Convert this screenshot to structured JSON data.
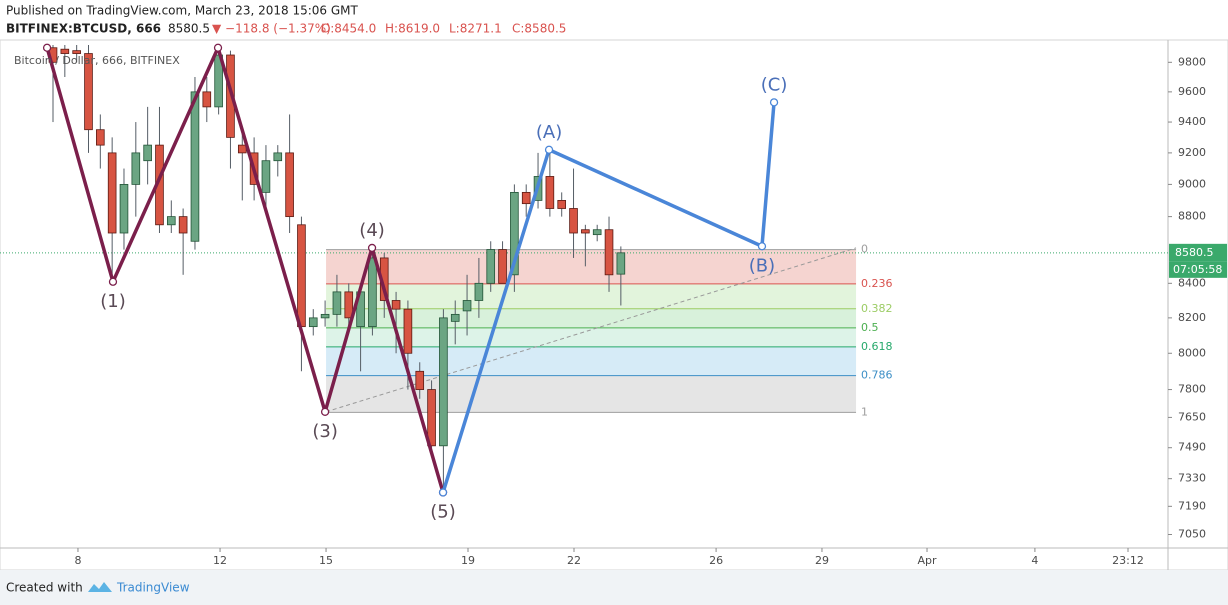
{
  "header": {
    "published": "Published on TradingView.com, March 23, 2018 15:06 GMT",
    "symbol": "BITFINEX:BTCUSD, 666",
    "last": "8580.5",
    "change": "▼ −118.8 (−1.37%)",
    "open": "O:8454.0",
    "high": "H:8619.0",
    "low": "L:8271.1",
    "close": "C:8580.5"
  },
  "footer": {
    "created": "Created with",
    "brand": "TradingView"
  },
  "chart_data": {
    "type": "candlestick",
    "legend": "Bitcoin / Dollar, 666, BITFINEX",
    "log": true,
    "up_color": "#6ba583",
    "down_color": "#d75442",
    "x": [
      0,
      1,
      2,
      3,
      4,
      5,
      6,
      7,
      8,
      9,
      10,
      11,
      12,
      13,
      14,
      15,
      16,
      17,
      18,
      19,
      20,
      21,
      22,
      23,
      24,
      25,
      26,
      27,
      28,
      29,
      30,
      31,
      32,
      33,
      34,
      35,
      36,
      37,
      38,
      39,
      40,
      41,
      42,
      43,
      44,
      45,
      46,
      47,
      48
    ],
    "open": [
      9900,
      9890,
      9880,
      9860,
      9350,
      9200,
      8700,
      9000,
      9150,
      9250,
      8750,
      8800,
      8650,
      9600,
      9500,
      9850,
      9250,
      9200,
      8950,
      9150,
      9200,
      8750,
      8150,
      8200,
      8220,
      8350,
      8150,
      8150,
      8550,
      8300,
      8250,
      7900,
      7800,
      7500,
      8180,
      8240,
      8300,
      8400,
      8600,
      8450,
      8950,
      8900,
      9050,
      8900,
      8850,
      8720,
      8690,
      8720,
      8454
    ],
    "high": [
      9919,
      9919,
      9919,
      9919,
      9450,
      9300,
      9100,
      9400,
      9500,
      9500,
      8900,
      8850,
      9700,
      9700,
      9919,
      9880,
      9350,
      9300,
      9250,
      9250,
      9450,
      8800,
      8250,
      8300,
      8450,
      8400,
      8400,
      8600,
      8580,
      8350,
      8300,
      7950,
      7850,
      8250,
      8300,
      8450,
      8550,
      8650,
      8650,
      9000,
      9000,
      9200,
      9220,
      8950,
      9100,
      8750,
      8750,
      8800,
      8619
    ],
    "low": [
      9400,
      9700,
      9800,
      9200,
      9100,
      8410,
      8600,
      8800,
      9000,
      8700,
      8700,
      8450,
      8600,
      9400,
      9450,
      9100,
      8900,
      8900,
      8850,
      9050,
      8700,
      7900,
      8100,
      8150,
      8150,
      8150,
      7900,
      8100,
      8200,
      8000,
      7800,
      7750,
      7480,
      7250,
      8050,
      8100,
      8200,
      8350,
      8400,
      8350,
      8800,
      8850,
      8800,
      8800,
      8550,
      8500,
      8650,
      8350,
      8271.1
    ],
    "close": [
      9800,
      9860,
      9860,
      9350,
      9250,
      8700,
      9000,
      9200,
      9250,
      8750,
      8800,
      8700,
      9600,
      9500,
      9850,
      9300,
      9200,
      9000,
      9150,
      9200,
      8800,
      8150,
      8200,
      8220,
      8350,
      8200,
      8350,
      8550,
      8300,
      8250,
      8000,
      7800,
      7500,
      8200,
      8220,
      8300,
      8400,
      8600,
      8400,
      8950,
      8880,
      9050,
      8850,
      8850,
      8700,
      8700,
      8720,
      8450,
      8580.5
    ],
    "last_price": 8580.5,
    "last_label": "8580.5",
    "countdown": "07:05:58",
    "last_color": "#3aa96b",
    "xlim": [
      -4.48,
      94.25
    ],
    "ylim": [
      6984,
      9919
    ],
    "xticks": [
      {
        "value": 2.11,
        "label": "8"
      },
      {
        "value": 14.12,
        "label": "12"
      },
      {
        "value": 23.08,
        "label": "15"
      },
      {
        "value": 35.08,
        "label": "19"
      },
      {
        "value": 44.04,
        "label": "22"
      },
      {
        "value": 56.05,
        "label": "26"
      },
      {
        "value": 65.0,
        "label": "29"
      },
      {
        "value": 73.88,
        "label": "Apr"
      },
      {
        "value": 83.0,
        "label": "4"
      },
      {
        "value": 90.87,
        "label": "23:12"
      }
    ],
    "yticks": [
      9800,
      9600,
      9400,
      9200,
      9000,
      8800,
      8400,
      8200,
      8000,
      7800,
      7650,
      7490,
      7330,
      7190,
      7050
    ],
    "fib": {
      "x": [
        23.08,
        67.88
      ],
      "trend": [
        7680,
        8610
      ],
      "levels": [
        {
          "label": 0,
          "price": 8600,
          "color": "#9e9e9e",
          "fill": "rgba(215,84,66,0.25)"
        },
        {
          "label": 0.236,
          "price": 8397,
          "color": "#d9534f",
          "fill": "rgba(160,220,140,0.3)"
        },
        {
          "label": 0.382,
          "price": 8252,
          "color": "#9ccc65",
          "fill": "rgba(100,200,110,0.25)"
        },
        {
          "label": 0.5,
          "price": 8143,
          "color": "#4caf50",
          "fill": "rgba(100,200,150,0.22)"
        },
        {
          "label": 0.618,
          "price": 8036,
          "color": "#26a96b",
          "fill": "rgba(120,190,230,0.3)"
        },
        {
          "label": 0.786,
          "price": 7876,
          "color": "#3d8fc6",
          "fill": "rgba(170,170,170,0.3)"
        },
        {
          "label": 1,
          "price": 7677,
          "color": "#9e9e9e",
          "fill": null
        }
      ]
    },
    "waves": [
      {
        "color": "#7b1f4b",
        "text_color": "#5a4a55",
        "x": [
          -0.5,
          5.07,
          13.95,
          23.0,
          26.97,
          32.97
        ],
        "values": [
          9900,
          8409,
          9900,
          7680,
          8610,
          7260
        ],
        "labels": [
          null,
          "(1)",
          null,
          "(3)",
          "(4)",
          "(5)"
        ]
      },
      {
        "color": "#4a86d8",
        "text_color": "#4a6fb8",
        "x": [
          32.97,
          41.93,
          59.93,
          60.95
        ],
        "values": [
          7260,
          9220,
          8620,
          9530
        ],
        "labels": [
          null,
          "(A)",
          "(B)",
          "(C)"
        ]
      }
    ]
  }
}
